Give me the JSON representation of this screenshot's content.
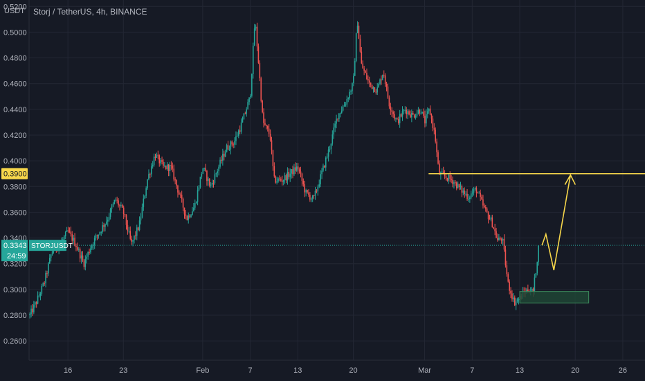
{
  "chart_data": {
    "type": "candlestick",
    "title": "Storj / TetherUS, 4h, BINANCE",
    "y_unit": "USDT",
    "ylim": [
      0.245,
      0.525
    ],
    "y_ticks": [
      "0.5200",
      "0.5000",
      "0.4800",
      "0.4600",
      "0.4400",
      "0.4200",
      "0.4000",
      "0.3800",
      "0.3600",
      "0.3400",
      "0.3200",
      "0.3000",
      "0.2800",
      "0.2600"
    ],
    "x_ticks": [
      {
        "label": "16",
        "day": 16
      },
      {
        "label": "23",
        "day": 23
      },
      {
        "label": "Feb",
        "day": 33
      },
      {
        "label": "7",
        "day": 39
      },
      {
        "label": "13",
        "day": 45
      },
      {
        "label": "20",
        "day": 52
      },
      {
        "label": "Mar",
        "day": 61
      },
      {
        "label": "7",
        "day": 67
      },
      {
        "label": "13",
        "day": 73
      },
      {
        "label": "20",
        "day": 80
      },
      {
        "label": "26",
        "day": 86
      }
    ],
    "xlim": [
      11.1,
      88.8
    ],
    "price_path": [
      [
        11.2,
        0.28
      ],
      [
        12,
        0.29
      ],
      [
        13,
        0.305
      ],
      [
        14,
        0.33
      ],
      [
        15,
        0.335
      ],
      [
        16,
        0.345
      ],
      [
        17,
        0.335
      ],
      [
        18,
        0.32
      ],
      [
        19,
        0.335
      ],
      [
        20,
        0.345
      ],
      [
        21,
        0.355
      ],
      [
        22,
        0.37
      ],
      [
        23,
        0.36
      ],
      [
        24,
        0.335
      ],
      [
        25,
        0.35
      ],
      [
        26,
        0.385
      ],
      [
        27,
        0.405
      ],
      [
        28,
        0.395
      ],
      [
        29,
        0.395
      ],
      [
        30,
        0.375
      ],
      [
        31,
        0.355
      ],
      [
        32,
        0.365
      ],
      [
        33,
        0.395
      ],
      [
        34,
        0.38
      ],
      [
        35,
        0.395
      ],
      [
        36,
        0.41
      ],
      [
        37,
        0.415
      ],
      [
        38,
        0.43
      ],
      [
        39,
        0.45
      ],
      [
        39.6,
        0.51
      ],
      [
        40,
        0.48
      ],
      [
        40.6,
        0.43
      ],
      [
        41.5,
        0.42
      ],
      [
        42,
        0.385
      ],
      [
        43,
        0.385
      ],
      [
        44,
        0.39
      ],
      [
        45,
        0.395
      ],
      [
        46,
        0.375
      ],
      [
        47,
        0.37
      ],
      [
        48,
        0.39
      ],
      [
        49,
        0.41
      ],
      [
        50,
        0.435
      ],
      [
        51,
        0.445
      ],
      [
        52,
        0.46
      ],
      [
        52.5,
        0.51
      ],
      [
        53,
        0.475
      ],
      [
        54,
        0.46
      ],
      [
        55,
        0.455
      ],
      [
        55.8,
        0.47
      ],
      [
        56.5,
        0.445
      ],
      [
        57.5,
        0.43
      ],
      [
        58.5,
        0.44
      ],
      [
        59.5,
        0.435
      ],
      [
        60.5,
        0.44
      ],
      [
        61,
        0.43
      ],
      [
        61.6,
        0.44
      ],
      [
        62.3,
        0.42
      ],
      [
        62.8,
        0.39
      ],
      [
        63.5,
        0.388
      ],
      [
        64.5,
        0.385
      ],
      [
        65.5,
        0.378
      ],
      [
        66.5,
        0.372
      ],
      [
        67.5,
        0.378
      ],
      [
        68.5,
        0.363
      ],
      [
        69.5,
        0.352
      ],
      [
        70.2,
        0.338
      ],
      [
        70.8,
        0.34
      ],
      [
        71.5,
        0.305
      ],
      [
        72.3,
        0.29
      ],
      [
        73,
        0.293
      ],
      [
        73.6,
        0.298
      ],
      [
        74.2,
        0.3
      ],
      [
        74.7,
        0.298
      ],
      [
        75.4,
        0.334
      ]
    ],
    "current_price": {
      "value": 0.3343,
      "symbol": "STORJUSDT",
      "countdown": "24:59",
      "day": 75.4
    },
    "resistance_line": {
      "value": 0.39,
      "label": "0.3900",
      "from_day": 61.5
    },
    "projection_path": [
      [
        75.8,
        0.3343
      ],
      [
        76.3,
        0.343
      ],
      [
        77.3,
        0.315
      ],
      [
        79.4,
        0.389
      ]
    ],
    "support_zone": {
      "from_day": 73.0,
      "to_day": 81.7,
      "low": 0.2895,
      "high": 0.2985
    },
    "grid": true,
    "price_axis": "left",
    "colors": {
      "background": "#161a25",
      "grid": "#232734",
      "text": "#b2b5be",
      "up": "#26a69a",
      "down": "#ef5350",
      "annotation": "#f7d74b",
      "current_price_bg": "#26a69a",
      "resistance_label_bg": "#f7d74b",
      "zone_fill": "#1f4535",
      "zone_border": "#3e8f5e"
    }
  }
}
